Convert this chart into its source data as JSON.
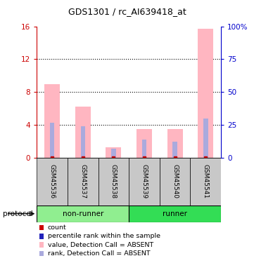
{
  "title": "GDS1301 / rc_AI639418_at",
  "samples": [
    "GSM45536",
    "GSM45537",
    "GSM45538",
    "GSM45539",
    "GSM45540",
    "GSM45541"
  ],
  "pink_values": [
    9.0,
    6.2,
    1.3,
    3.5,
    3.5,
    15.7
  ],
  "blue_values": [
    4.3,
    3.8,
    1.1,
    2.2,
    2.0,
    4.8
  ],
  "ylim_left": [
    0,
    16
  ],
  "ylim_right": [
    0,
    100
  ],
  "yticks_left": [
    0,
    4,
    8,
    12,
    16
  ],
  "yticks_right": [
    0,
    25,
    50,
    75,
    100
  ],
  "ytick_labels_right": [
    "0",
    "25",
    "50",
    "75",
    "100%"
  ],
  "bar_color_pink": "#FFB6C1",
  "bar_color_blue": "#AAAADD",
  "dot_color_red": "#CC0000",
  "dot_color_blue": "#2222BB",
  "axis_left_color": "#CC0000",
  "axis_right_color": "#0000CC",
  "nonrunner_color": "#90EE90",
  "runner_color": "#33DD55",
  "label_bg_color": "#C8C8C8",
  "legend_entries": [
    {
      "color": "#CC0000",
      "label": "count",
      "marker": "s"
    },
    {
      "color": "#2222BB",
      "label": "percentile rank within the sample",
      "marker": "s"
    },
    {
      "color": "#FFB6C1",
      "label": "value, Detection Call = ABSENT",
      "marker": "s"
    },
    {
      "color": "#AAAADD",
      "label": "rank, Detection Call = ABSENT",
      "marker": "s"
    }
  ],
  "grid_lines": [
    4,
    8,
    12
  ],
  "bar_width": 0.5,
  "rank_bar_width": 0.15
}
